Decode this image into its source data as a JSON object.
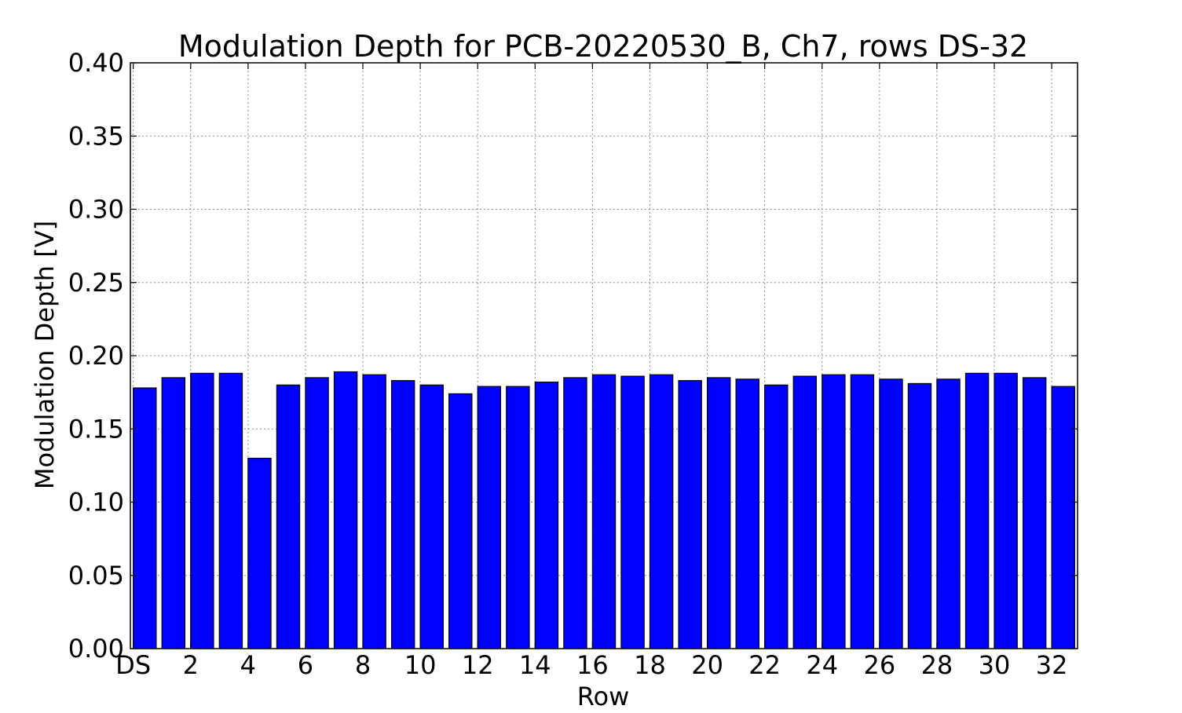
{
  "chart_data": {
    "type": "bar",
    "title": "Modulation Depth for PCB-20220530_B, Ch7, rows DS-32",
    "xlabel": "Row",
    "ylabel": "Modulation Depth [V]",
    "ylim": [
      0,
      0.4
    ],
    "yticks": [
      "0.00",
      "0.05",
      "0.10",
      "0.15",
      "0.20",
      "0.25",
      "0.30",
      "0.35",
      "0.40"
    ],
    "xtick_labels": [
      "DS",
      "2",
      "4",
      "6",
      "8",
      "10",
      "12",
      "14",
      "16",
      "18",
      "20",
      "22",
      "24",
      "26",
      "28",
      "30",
      "32"
    ],
    "categories": [
      "DS",
      "1",
      "2",
      "3",
      "4",
      "5",
      "6",
      "7",
      "8",
      "9",
      "10",
      "11",
      "12",
      "13",
      "14",
      "15",
      "16",
      "17",
      "18",
      "19",
      "20",
      "21",
      "22",
      "23",
      "24",
      "25",
      "26",
      "27",
      "28",
      "29",
      "30",
      "31",
      "32"
    ],
    "values": [
      0.178,
      0.185,
      0.188,
      0.188,
      0.13,
      0.18,
      0.185,
      0.189,
      0.187,
      0.183,
      0.18,
      0.174,
      0.179,
      0.179,
      0.182,
      0.185,
      0.187,
      0.186,
      0.187,
      0.183,
      0.185,
      0.184,
      0.18,
      0.186,
      0.187,
      0.187,
      0.184,
      0.181,
      0.184,
      0.188,
      0.188,
      0.185,
      0.179
    ],
    "bar_color": "#0000ff",
    "grid": true
  }
}
